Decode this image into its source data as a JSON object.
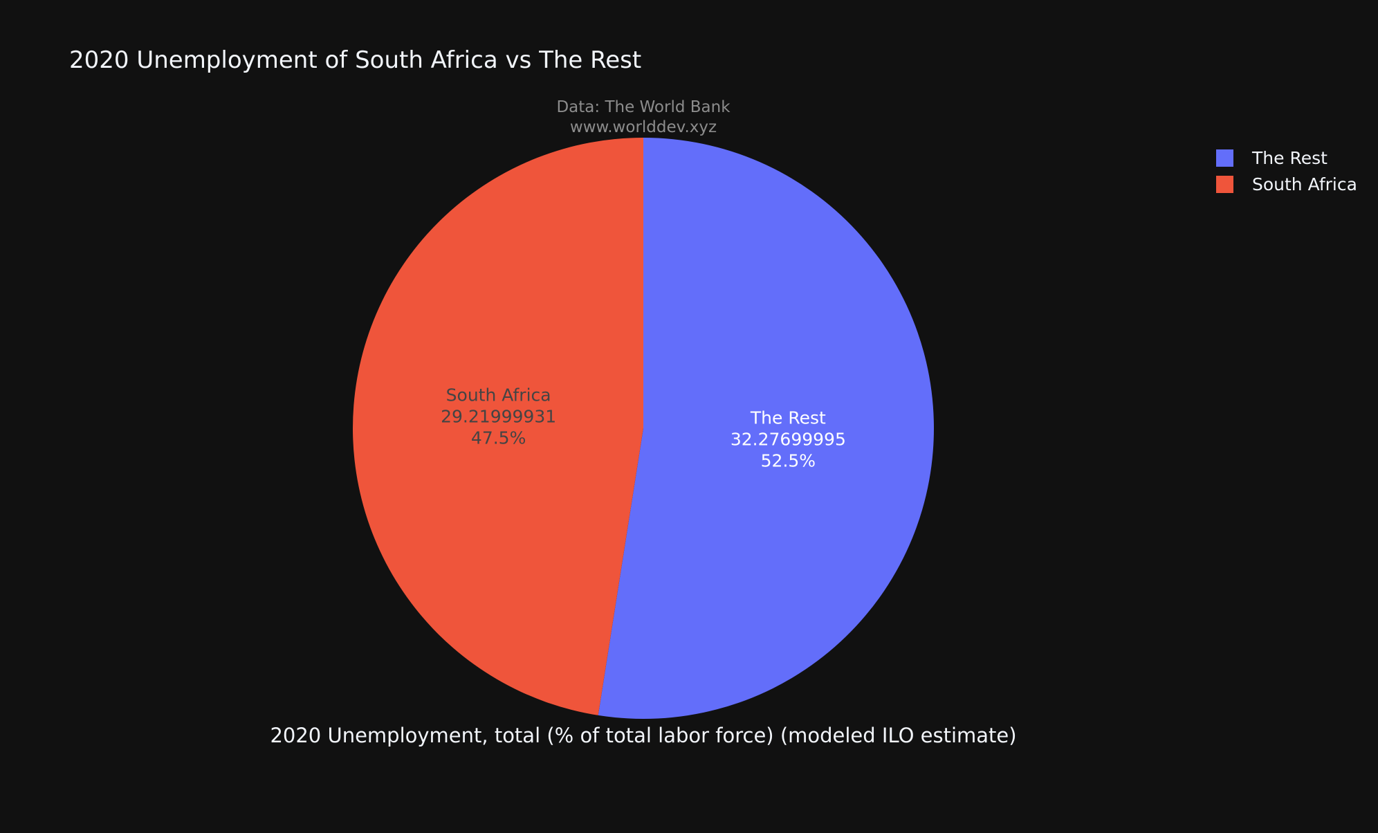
{
  "chart_data": {
    "type": "pie",
    "title": "2020 Unemployment of South Africa vs The Rest",
    "annotation": {
      "source": "Data: The World Bank",
      "website": "www.worlddev.xyz"
    },
    "xlabel": "2020 Unemployment, total (% of total labor force) (modeled ILO estimate)",
    "legend_position": "top-right",
    "slices": [
      {
        "label": "The Rest",
        "value": 32.27699995,
        "value_text": "32.27699995",
        "percent_text": "52.5%",
        "color": "#636EFA",
        "text_color": "#ffffff"
      },
      {
        "label": "South Africa",
        "value": 29.21999931,
        "value_text": "29.21999931",
        "percent_text": "47.5%",
        "color": "#EF553B",
        "text_color": "#444444"
      }
    ]
  },
  "colors": {
    "background": "#111111",
    "title": "#f2f5fa",
    "annotation": "#8c8c8c",
    "legend_text": "#f2f5fa"
  }
}
